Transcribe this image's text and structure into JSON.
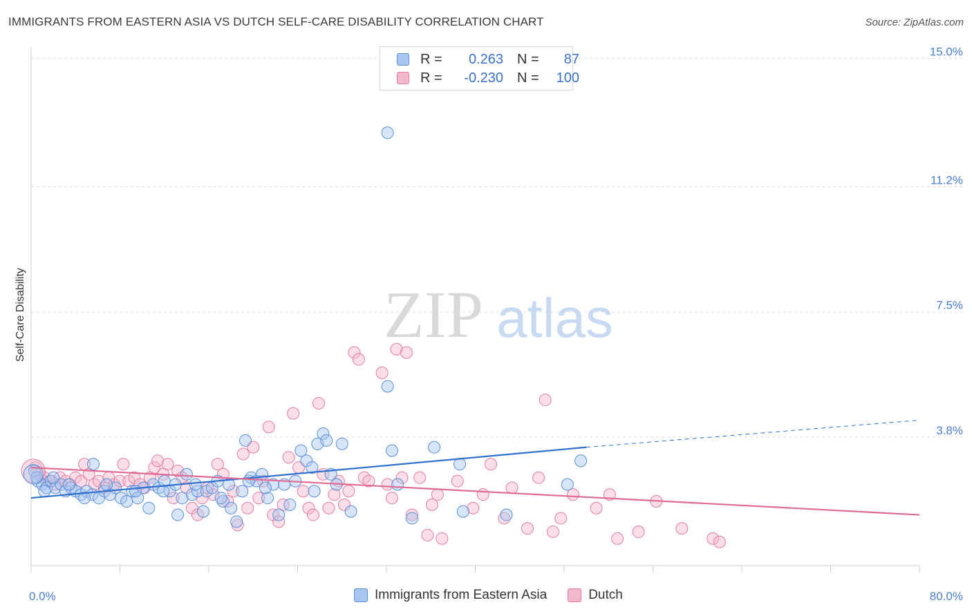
{
  "title": "IMMIGRANTS FROM EASTERN ASIA VS DUTCH SELF-CARE DISABILITY CORRELATION CHART",
  "source": "Source: ZipAtlas.com",
  "watermark": {
    "zip": "ZIP",
    "atlas": "atlas"
  },
  "colors": {
    "blue": "#5b8fd8",
    "blue_fill": "#a9c6f0",
    "blue_line": "#2f6fcf",
    "pink": "#e87ca0",
    "pink_fill": "#f4b8cb",
    "pink_line": "#e06a96",
    "tick": "#4a7fd0"
  },
  "legend": {
    "rows": [
      {
        "r_label": "R =",
        "r_value": "0.263",
        "n_label": "N =",
        "n_value": "87"
      },
      {
        "r_label": "R =",
        "r_value": "-0.230",
        "n_label": "N =",
        "n_value": "100"
      }
    ]
  },
  "bottom_legend": {
    "series1": "Immigrants from Eastern Asia",
    "series2": "Dutch"
  },
  "chart_data": {
    "type": "scatter",
    "ylabel": "Self-Care Disability",
    "xlim": [
      0,
      80
    ],
    "ylim": [
      0,
      15.5
    ],
    "x_tick_labels": [
      "0.0%",
      "80.0%"
    ],
    "y_ticks": [
      {
        "value": 3.8,
        "label": "3.8%"
      },
      {
        "value": 7.5,
        "label": "7.5%"
      },
      {
        "value": 11.2,
        "label": "11.2%"
      },
      {
        "value": 15.0,
        "label": "15.0%"
      }
    ],
    "grid": true,
    "series": [
      {
        "name": "Immigrants from Eastern Asia",
        "color": "blue",
        "trend": {
          "x1": 0,
          "y1": 2.0,
          "x2": 50,
          "y2": 3.5,
          "dash_x2": 80,
          "dash_y2": 4.3
        },
        "points": [
          [
            0.3,
            2.8
          ],
          [
            0.6,
            2.5
          ],
          [
            1.0,
            2.4
          ],
          [
            1.4,
            2.3
          ],
          [
            1.8,
            2.5
          ],
          [
            2.2,
            2.3
          ],
          [
            2.7,
            2.4
          ],
          [
            3.1,
            2.2
          ],
          [
            3.6,
            2.3
          ],
          [
            4.0,
            2.2
          ],
          [
            4.5,
            2.1
          ],
          [
            5.0,
            2.2
          ],
          [
            5.5,
            2.1
          ],
          [
            5.6,
            3.0
          ],
          [
            6.1,
            2.0
          ],
          [
            6.6,
            2.2
          ],
          [
            7.1,
            2.1
          ],
          [
            7.6,
            2.3
          ],
          [
            8.1,
            2.0
          ],
          [
            8.6,
            1.9
          ],
          [
            9.1,
            2.2
          ],
          [
            9.6,
            2.0
          ],
          [
            10.1,
            2.3
          ],
          [
            10.6,
            1.7
          ],
          [
            11.0,
            2.4
          ],
          [
            11.5,
            2.3
          ],
          [
            12.0,
            2.5
          ],
          [
            12.5,
            2.2
          ],
          [
            13.0,
            2.4
          ],
          [
            13.2,
            1.5
          ],
          [
            13.6,
            2.0
          ],
          [
            14.0,
            2.7
          ],
          [
            14.5,
            2.1
          ],
          [
            15.0,
            2.2
          ],
          [
            15.5,
            1.6
          ],
          [
            15.8,
            2.2
          ],
          [
            16.3,
            2.3
          ],
          [
            16.8,
            2.5
          ],
          [
            17.3,
            1.9
          ],
          [
            17.8,
            2.4
          ],
          [
            18.0,
            1.7
          ],
          [
            18.5,
            1.3
          ],
          [
            19.0,
            2.2
          ],
          [
            19.3,
            3.7
          ],
          [
            19.8,
            2.6
          ],
          [
            20.3,
            2.5
          ],
          [
            20.8,
            2.7
          ],
          [
            21.3,
            2.0
          ],
          [
            21.8,
            2.4
          ],
          [
            22.3,
            1.5
          ],
          [
            22.8,
            2.4
          ],
          [
            23.3,
            1.8
          ],
          [
            23.8,
            2.5
          ],
          [
            24.3,
            3.4
          ],
          [
            24.8,
            3.1
          ],
          [
            25.3,
            2.9
          ],
          [
            25.8,
            3.6
          ],
          [
            26.3,
            3.9
          ],
          [
            26.6,
            3.7
          ],
          [
            27.0,
            2.7
          ],
          [
            27.5,
            2.4
          ],
          [
            28.0,
            3.6
          ],
          [
            28.8,
            1.6
          ],
          [
            32.1,
            12.8
          ],
          [
            32.1,
            5.3
          ],
          [
            32.5,
            3.4
          ],
          [
            33.0,
            2.4
          ],
          [
            34.3,
            1.4
          ],
          [
            36.3,
            3.5
          ],
          [
            38.6,
            3.0
          ],
          [
            38.9,
            1.6
          ],
          [
            42.8,
            1.5
          ],
          [
            48.3,
            2.4
          ],
          [
            49.5,
            3.1
          ],
          [
            0.5,
            2.6
          ],
          [
            1.2,
            2.2
          ],
          [
            2.0,
            2.6
          ],
          [
            3.4,
            2.4
          ],
          [
            4.8,
            2.0
          ],
          [
            6.8,
            2.4
          ],
          [
            9.4,
            2.2
          ],
          [
            11.9,
            2.2
          ],
          [
            14.8,
            2.4
          ],
          [
            17.1,
            2.0
          ],
          [
            19.6,
            2.5
          ],
          [
            21.1,
            2.3
          ],
          [
            25.5,
            2.2
          ]
        ]
      },
      {
        "name": "Dutch",
        "color": "pink",
        "trend": {
          "x1": 0,
          "y1": 2.9,
          "x2": 80,
          "y2": 1.5
        },
        "points": [
          [
            0.4,
            2.9
          ],
          [
            0.8,
            2.7
          ],
          [
            1.2,
            2.6
          ],
          [
            1.7,
            2.5
          ],
          [
            2.2,
            2.4
          ],
          [
            2.6,
            2.6
          ],
          [
            3.1,
            2.5
          ],
          [
            3.5,
            2.4
          ],
          [
            4.0,
            2.6
          ],
          [
            4.5,
            2.5
          ],
          [
            4.8,
            3.0
          ],
          [
            5.2,
            2.7
          ],
          [
            5.7,
            2.4
          ],
          [
            6.1,
            2.5
          ],
          [
            6.6,
            2.3
          ],
          [
            7.0,
            2.6
          ],
          [
            7.5,
            2.4
          ],
          [
            8.0,
            2.5
          ],
          [
            8.3,
            3.0
          ],
          [
            8.8,
            2.5
          ],
          [
            9.3,
            2.6
          ],
          [
            9.8,
            2.4
          ],
          [
            10.2,
            2.3
          ],
          [
            10.7,
            2.6
          ],
          [
            11.1,
            2.9
          ],
          [
            11.4,
            3.1
          ],
          [
            11.9,
            2.7
          ],
          [
            12.3,
            3.0
          ],
          [
            12.8,
            2.0
          ],
          [
            13.2,
            2.8
          ],
          [
            13.6,
            2.6
          ],
          [
            14.0,
            2.3
          ],
          [
            14.5,
            1.7
          ],
          [
            15.0,
            1.5
          ],
          [
            15.4,
            2.0
          ],
          [
            15.9,
            2.3
          ],
          [
            16.4,
            2.1
          ],
          [
            16.8,
            3.0
          ],
          [
            17.3,
            2.7
          ],
          [
            17.7,
            1.9
          ],
          [
            18.2,
            2.2
          ],
          [
            18.6,
            1.2
          ],
          [
            19.1,
            3.3
          ],
          [
            19.5,
            1.7
          ],
          [
            20.0,
            3.5
          ],
          [
            20.5,
            2.0
          ],
          [
            20.9,
            2.5
          ],
          [
            21.4,
            4.1
          ],
          [
            21.8,
            1.5
          ],
          [
            22.3,
            1.3
          ],
          [
            22.7,
            1.8
          ],
          [
            23.2,
            3.2
          ],
          [
            23.6,
            4.5
          ],
          [
            24.1,
            2.9
          ],
          [
            24.5,
            2.2
          ],
          [
            25.0,
            1.7
          ],
          [
            25.4,
            1.5
          ],
          [
            25.9,
            4.8
          ],
          [
            26.3,
            2.7
          ],
          [
            26.8,
            1.7
          ],
          [
            27.3,
            2.1
          ],
          [
            27.7,
            2.5
          ],
          [
            28.2,
            1.8
          ],
          [
            28.6,
            2.2
          ],
          [
            29.1,
            6.3
          ],
          [
            29.5,
            6.1
          ],
          [
            30.0,
            2.6
          ],
          [
            30.4,
            2.5
          ],
          [
            31.6,
            5.7
          ],
          [
            32.1,
            2.4
          ],
          [
            32.5,
            2.0
          ],
          [
            32.9,
            6.4
          ],
          [
            33.4,
            2.6
          ],
          [
            33.8,
            6.3
          ],
          [
            34.3,
            1.5
          ],
          [
            35.0,
            2.6
          ],
          [
            35.7,
            0.9
          ],
          [
            36.1,
            1.8
          ],
          [
            36.6,
            2.1
          ],
          [
            37.0,
            0.8
          ],
          [
            38.4,
            2.5
          ],
          [
            39.8,
            1.7
          ],
          [
            40.7,
            2.1
          ],
          [
            41.4,
            3.0
          ],
          [
            42.6,
            1.4
          ],
          [
            43.3,
            2.3
          ],
          [
            44.7,
            1.1
          ],
          [
            45.7,
            2.6
          ],
          [
            46.3,
            4.9
          ],
          [
            47.0,
            1.0
          ],
          [
            47.7,
            1.4
          ],
          [
            48.8,
            2.1
          ],
          [
            50.9,
            1.7
          ],
          [
            52.1,
            2.1
          ],
          [
            52.8,
            0.8
          ],
          [
            54.7,
            1.0
          ],
          [
            56.3,
            1.9
          ],
          [
            58.6,
            1.1
          ],
          [
            61.4,
            0.8
          ],
          [
            62.0,
            0.7
          ]
        ]
      }
    ]
  }
}
